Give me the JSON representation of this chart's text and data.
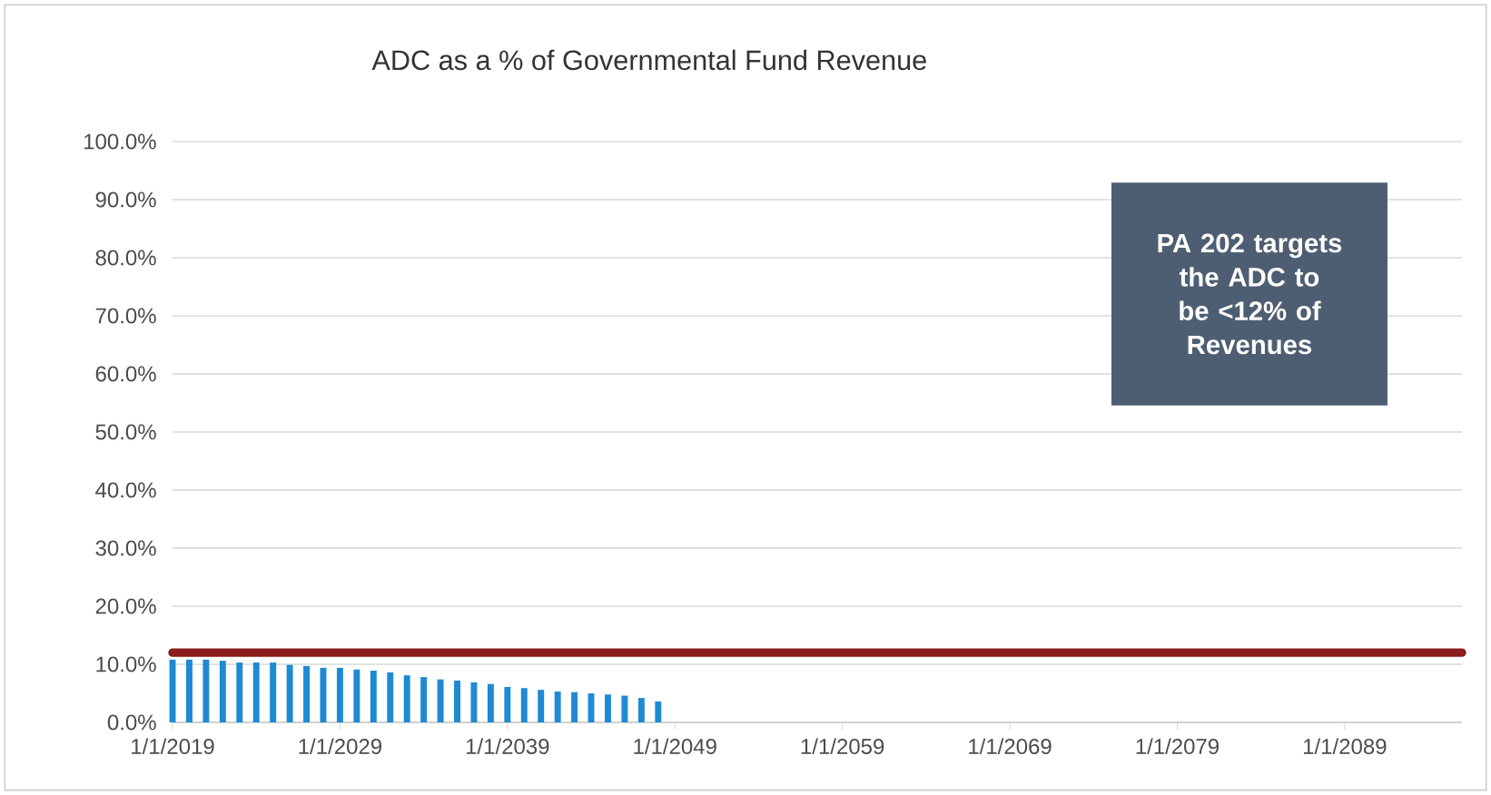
{
  "chart_data": {
    "type": "bar",
    "title": "ADC as a % of Governmental Fund Revenue",
    "x": [
      "2019-01-01",
      "2020-01-01",
      "2021-01-01",
      "2022-01-01",
      "2023-01-01",
      "2024-01-01",
      "2025-01-01",
      "2026-01-01",
      "2027-01-01",
      "2028-01-01",
      "2029-01-01",
      "2030-01-01",
      "2031-01-01",
      "2032-01-01",
      "2033-01-01",
      "2034-01-01",
      "2035-01-01",
      "2036-01-01",
      "2037-01-01",
      "2038-01-01",
      "2039-01-01",
      "2040-01-01",
      "2041-01-01",
      "2042-01-01",
      "2043-01-01",
      "2044-01-01",
      "2045-01-01",
      "2046-01-01",
      "2047-01-01",
      "2048-01-01"
    ],
    "values": [
      10.8,
      10.8,
      10.8,
      10.6,
      10.3,
      10.3,
      10.3,
      9.9,
      9.7,
      9.4,
      9.4,
      9.1,
      8.9,
      8.6,
      8.1,
      7.8,
      7.4,
      7.2,
      6.9,
      6.6,
      6.1,
      5.9,
      5.6,
      5.3,
      5.2,
      5.0,
      4.8,
      4.6,
      4.2,
      3.6
    ],
    "color": "#1e8ad3",
    "xlim": [
      "2019-01-01",
      "2096-01-01"
    ],
    "xticks": [
      {
        "value": "2019-01-01",
        "label": "1/1/2019"
      },
      {
        "value": "2029-01-01",
        "label": "1/1/2029"
      },
      {
        "value": "2039-01-01",
        "label": "1/1/2039"
      },
      {
        "value": "2049-01-01",
        "label": "1/1/2049"
      },
      {
        "value": "2059-01-01",
        "label": "1/1/2059"
      },
      {
        "value": "2069-01-01",
        "label": "1/1/2069"
      },
      {
        "value": "2079-01-01",
        "label": "1/1/2079"
      },
      {
        "value": "2089-01-01",
        "label": "1/1/2089"
      }
    ],
    "ylim": [
      0,
      100
    ],
    "yticks": [
      {
        "value": 0,
        "label": "0.0%"
      },
      {
        "value": 10,
        "label": "10.0%"
      },
      {
        "value": 20,
        "label": "20.0%"
      },
      {
        "value": 30,
        "label": "30.0%"
      },
      {
        "value": 40,
        "label": "40.0%"
      },
      {
        "value": 50,
        "label": "50.0%"
      },
      {
        "value": 60,
        "label": "60.0%"
      },
      {
        "value": 70,
        "label": "70.0%"
      },
      {
        "value": 80,
        "label": "80.0%"
      },
      {
        "value": 90,
        "label": "90.0%"
      },
      {
        "value": 100,
        "label": "100.0%"
      }
    ],
    "grid": "y",
    "ref_lines": [
      {
        "axis": "y",
        "value": 12,
        "color": "#8b1c1c"
      }
    ],
    "annotations": [
      "PA 202 targets the ADC to be <12% of Revenues"
    ]
  }
}
